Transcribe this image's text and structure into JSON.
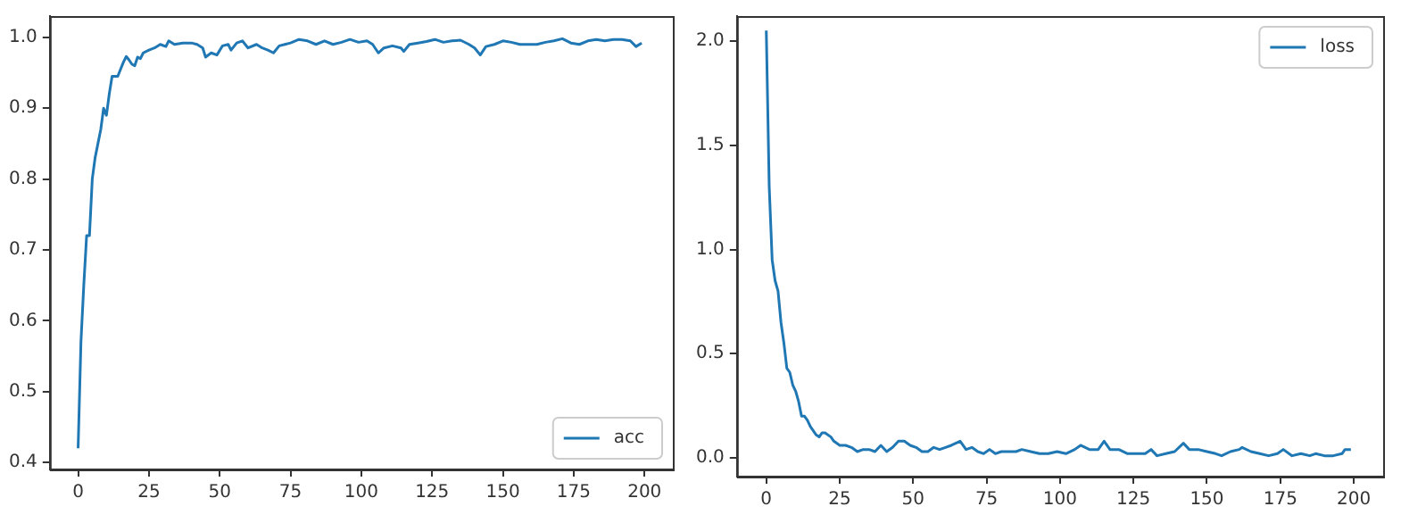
{
  "chart_data": [
    {
      "type": "line",
      "legend": "bottom right",
      "grid": false,
      "xlim": [
        -10,
        210
      ],
      "xticks": [
        0,
        25,
        50,
        75,
        100,
        125,
        150,
        175,
        200
      ],
      "ylim": [
        0.39,
        1.03
      ],
      "yticks": [
        {
          "value": 0.4,
          "label": "0.4"
        },
        {
          "value": 0.5,
          "label": "0.5"
        },
        {
          "value": 0.6,
          "label": "0.6"
        },
        {
          "value": 0.7,
          "label": "0.7"
        },
        {
          "value": 0.8,
          "label": "0.8"
        },
        {
          "value": 0.9,
          "label": "0.9"
        },
        {
          "value": 1.0,
          "label": "1.0"
        }
      ],
      "series": [
        {
          "name": "acc",
          "color": "#1f77b4",
          "x": [
            0,
            1,
            2,
            3,
            4,
            5,
            6,
            7,
            8,
            9,
            10,
            11,
            12,
            13,
            14,
            15,
            16,
            17,
            18,
            19,
            20,
            21,
            22,
            23,
            25,
            27,
            29,
            31,
            32,
            34,
            37,
            40,
            42,
            44,
            45,
            47,
            49,
            51,
            53,
            54,
            56,
            58,
            60,
            63,
            65,
            67,
            69,
            71,
            73,
            75,
            78,
            81,
            84,
            87,
            90,
            93,
            96,
            99,
            102,
            104,
            106,
            108,
            111,
            114,
            115,
            117,
            120,
            123,
            126,
            129,
            132,
            135,
            138,
            140,
            142,
            144,
            147,
            150,
            153,
            156,
            159,
            162,
            165,
            168,
            171,
            174,
            177,
            180,
            183,
            186,
            189,
            192,
            195,
            197,
            199
          ],
          "values": [
            0.42,
            0.57,
            0.65,
            0.72,
            0.72,
            0.8,
            0.83,
            0.85,
            0.87,
            0.9,
            0.89,
            0.92,
            0.945,
            0.945,
            0.945,
            0.955,
            0.965,
            0.973,
            0.968,
            0.962,
            0.96,
            0.972,
            0.97,
            0.978,
            0.982,
            0.985,
            0.99,
            0.987,
            0.995,
            0.99,
            0.992,
            0.992,
            0.99,
            0.985,
            0.972,
            0.978,
            0.975,
            0.988,
            0.99,
            0.982,
            0.992,
            0.995,
            0.985,
            0.99,
            0.985,
            0.982,
            0.978,
            0.988,
            0.99,
            0.992,
            0.997,
            0.995,
            0.99,
            0.995,
            0.99,
            0.993,
            0.997,
            0.993,
            0.995,
            0.99,
            0.978,
            0.985,
            0.988,
            0.985,
            0.98,
            0.99,
            0.992,
            0.994,
            0.997,
            0.993,
            0.995,
            0.996,
            0.99,
            0.985,
            0.975,
            0.987,
            0.99,
            0.995,
            0.993,
            0.99,
            0.99,
            0.99,
            0.993,
            0.995,
            0.998,
            0.992,
            0.99,
            0.995,
            0.997,
            0.995,
            0.997,
            0.997,
            0.995,
            0.987,
            0.992
          ]
        }
      ]
    },
    {
      "type": "line",
      "legend": "top right",
      "grid": false,
      "xlim": [
        -10,
        210
      ],
      "xticks": [
        0,
        25,
        50,
        75,
        100,
        125,
        150,
        175,
        200
      ],
      "ylim": [
        -0.09,
        2.12
      ],
      "yticks": [
        {
          "value": 0,
          "label": "0.0"
        },
        {
          "value": 0.5,
          "label": "0.5"
        },
        {
          "value": 1,
          "label": "1.0"
        },
        {
          "value": 1.5,
          "label": "1.5"
        },
        {
          "value": 2,
          "label": "2.0"
        }
      ],
      "series": [
        {
          "name": "loss",
          "color": "#1f77b4",
          "x": [
            0,
            1,
            2,
            3,
            4,
            5,
            6,
            7,
            8,
            9,
            10,
            11,
            12,
            13,
            14,
            15,
            16,
            17,
            18,
            19,
            20,
            22,
            23,
            25,
            27,
            29,
            31,
            33,
            35,
            37,
            39,
            41,
            43,
            45,
            47,
            49,
            51,
            53,
            55,
            57,
            59,
            61,
            63,
            66,
            68,
            70,
            72,
            74,
            76,
            78,
            80,
            83,
            85,
            87,
            90,
            93,
            96,
            99,
            102,
            105,
            107,
            110,
            113,
            115,
            117,
            120,
            123,
            126,
            129,
            131,
            133,
            136,
            139,
            142,
            144,
            147,
            150,
            153,
            155,
            158,
            161,
            162,
            165,
            168,
            171,
            174,
            176,
            179,
            182,
            185,
            187,
            190,
            193,
            196,
            197,
            199
          ],
          "values": [
            2.05,
            1.3,
            0.95,
            0.85,
            0.8,
            0.65,
            0.55,
            0.43,
            0.41,
            0.35,
            0.32,
            0.27,
            0.2,
            0.2,
            0.18,
            0.15,
            0.13,
            0.11,
            0.1,
            0.12,
            0.12,
            0.1,
            0.08,
            0.06,
            0.06,
            0.05,
            0.03,
            0.04,
            0.04,
            0.03,
            0.06,
            0.03,
            0.05,
            0.08,
            0.08,
            0.06,
            0.05,
            0.03,
            0.03,
            0.05,
            0.04,
            0.05,
            0.06,
            0.08,
            0.04,
            0.05,
            0.03,
            0.02,
            0.04,
            0.02,
            0.03,
            0.03,
            0.03,
            0.04,
            0.03,
            0.02,
            0.02,
            0.03,
            0.02,
            0.04,
            0.06,
            0.04,
            0.04,
            0.08,
            0.04,
            0.04,
            0.02,
            0.02,
            0.02,
            0.04,
            0.01,
            0.02,
            0.03,
            0.07,
            0.04,
            0.04,
            0.03,
            0.02,
            0.01,
            0.03,
            0.04,
            0.05,
            0.03,
            0.02,
            0.01,
            0.02,
            0.04,
            0.01,
            0.02,
            0.01,
            0.02,
            0.01,
            0.01,
            0.02,
            0.04,
            0.04
          ]
        }
      ]
    }
  ]
}
